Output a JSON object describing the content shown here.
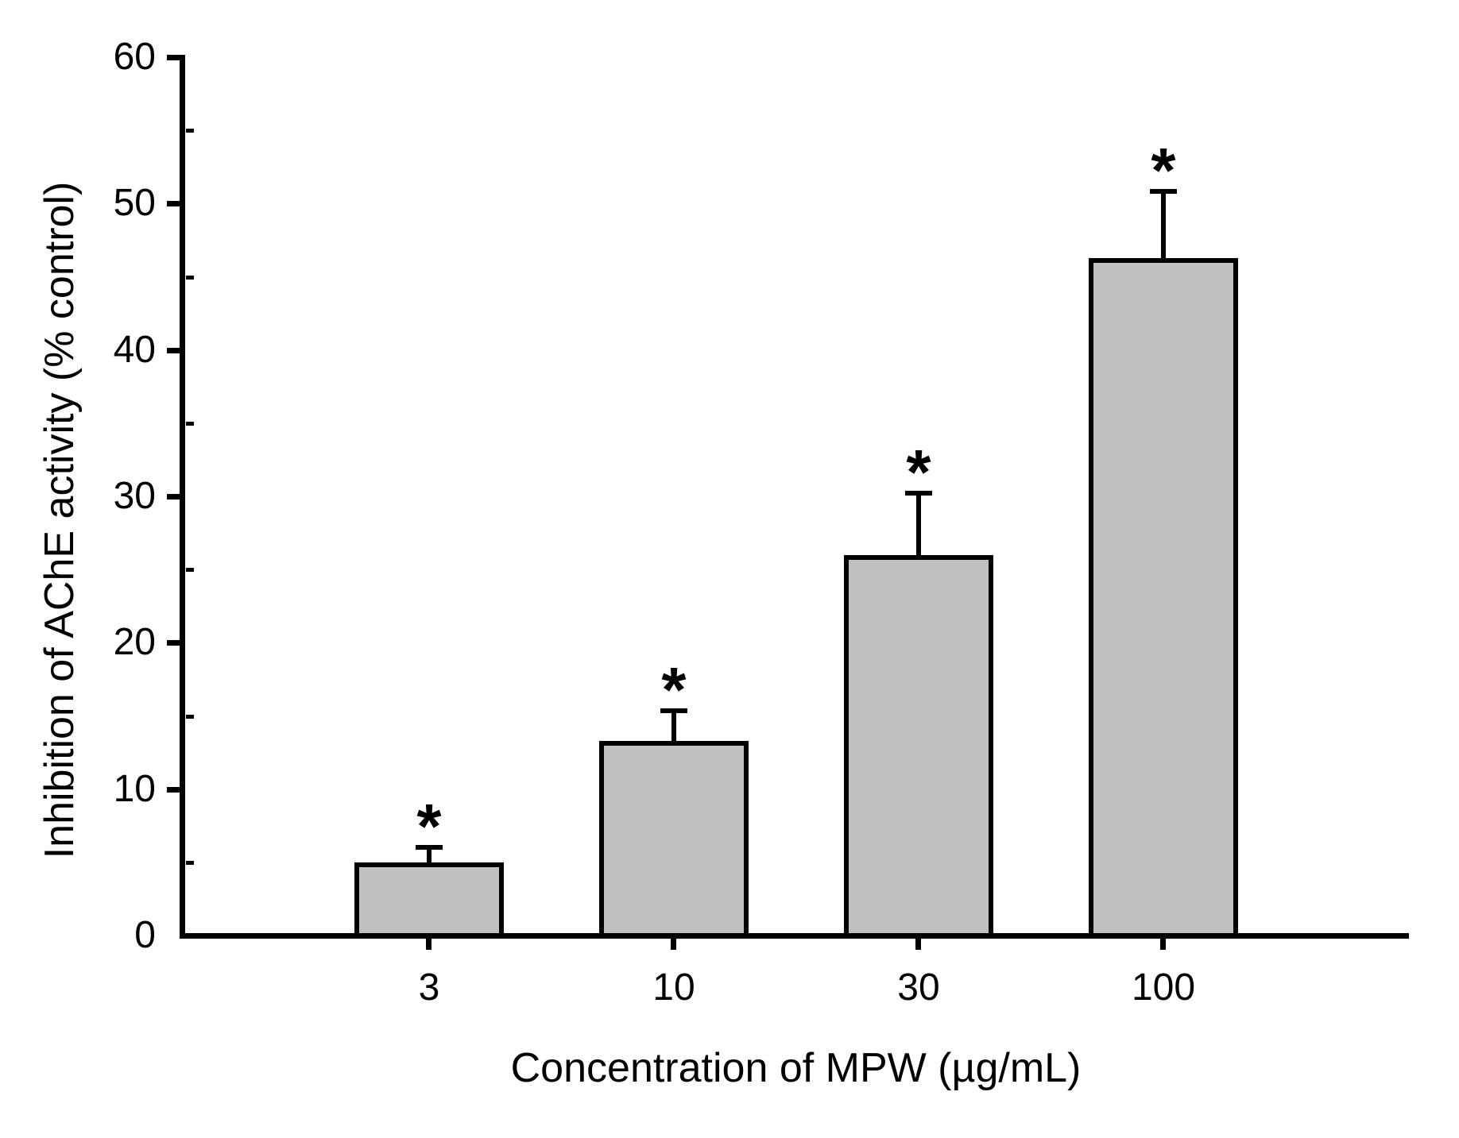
{
  "figure": {
    "background_color": "#ffffff",
    "line_color": "#000000",
    "bar_fill_color": "#c1c1c1"
  },
  "chart_data": {
    "type": "bar",
    "title": "",
    "xlabel": "Concentration of MPW (µg/mL)",
    "ylabel": "Inhibition of AChE activity (% control)",
    "categories": [
      "3",
      "10",
      "30",
      "100"
    ],
    "values": [
      5.0,
      13.3,
      26.0,
      46.3
    ],
    "error_up": [
      1.2,
      2.2,
      4.4,
      4.7
    ],
    "significance_markers": [
      "*",
      "*",
      "*",
      "*"
    ],
    "ylim": [
      0,
      60
    ],
    "y_major_ticks": [
      0,
      10,
      20,
      30,
      40,
      50,
      60
    ],
    "y_major_tick_labels": [
      "0",
      "10",
      "20",
      "30",
      "40",
      "50",
      "60"
    ],
    "y_minor_ticks": [
      5,
      15,
      25,
      35,
      45,
      55
    ],
    "grid": false,
    "legend": "none",
    "bar_color_hex": "#c1c1c1",
    "axis_color_hex": "#000000"
  }
}
